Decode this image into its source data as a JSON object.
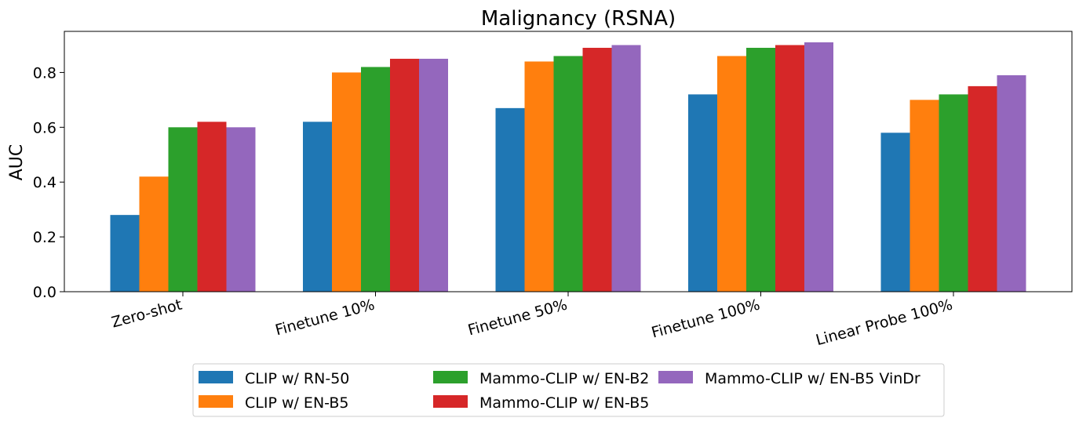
{
  "chart_data": {
    "type": "bar",
    "title": "Malignancy (RSNA)",
    "xlabel": "",
    "ylabel": "AUC",
    "ylim": [
      0,
      0.95
    ],
    "yticks": [
      "0.0",
      "0.2",
      "0.4",
      "0.6",
      "0.8"
    ],
    "categories": [
      "Zero-shot",
      "Finetune 10%",
      "Finetune 50%",
      "Finetune 100%",
      "Linear Probe 100%"
    ],
    "series": [
      {
        "name": "CLIP w/ RN-50",
        "color": "#1f77b4",
        "values": [
          0.28,
          0.62,
          0.67,
          0.72,
          0.58
        ]
      },
      {
        "name": "CLIP w/ EN-B5",
        "color": "#ff7f0e",
        "values": [
          0.42,
          0.8,
          0.84,
          0.86,
          0.7
        ]
      },
      {
        "name": "Mammo-CLIP w/ EN-B2",
        "color": "#2ca02c",
        "values": [
          0.6,
          0.82,
          0.86,
          0.89,
          0.72
        ]
      },
      {
        "name": "Mammo-CLIP w/ EN-B5",
        "color": "#d62728",
        "values": [
          0.62,
          0.85,
          0.89,
          0.9,
          0.75
        ]
      },
      {
        "name": "Mammo-CLIP w/ EN-B5 VinDr",
        "color": "#9467bd",
        "values": [
          0.6,
          0.85,
          0.9,
          0.91,
          0.79
        ]
      }
    ],
    "grid": false,
    "legend_position": "bottom-center",
    "xtick_rotation": "slanted"
  }
}
